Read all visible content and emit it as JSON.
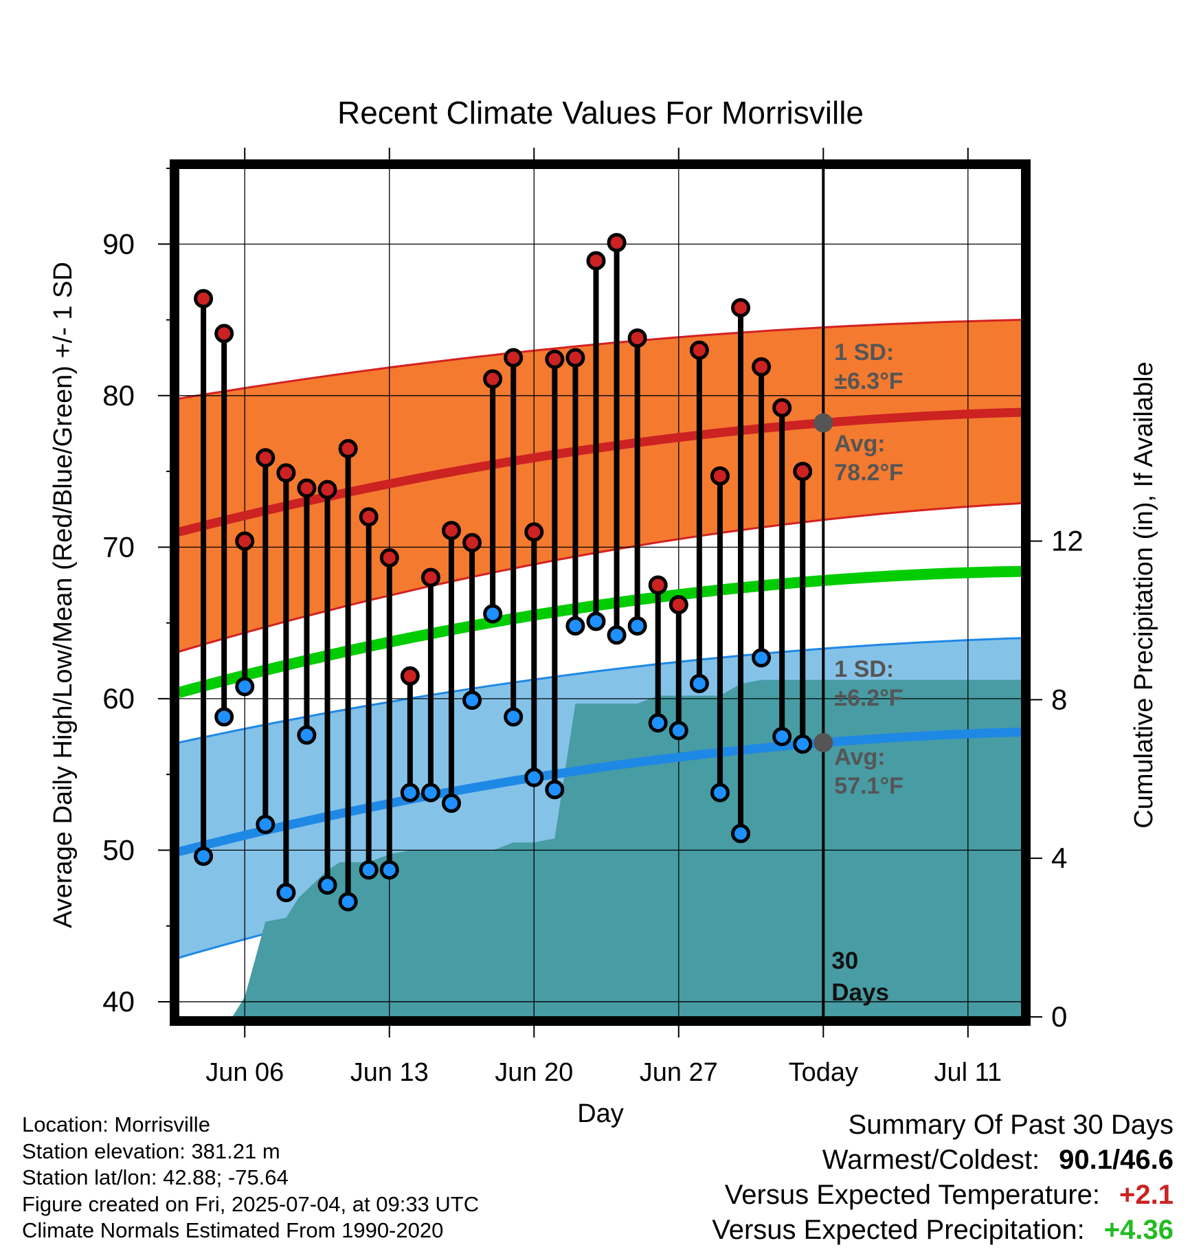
{
  "chart_data": {
    "type": "line",
    "title": "Recent Climate Values For Morrisville",
    "xlabel": "Day",
    "ylabel": "Average Daily High/Low/Mean (Red/Blue/Green) +/- 1 SD",
    "y2label": "Cumulative Precipitation (in), If Available",
    "ylim": [
      39,
      95
    ],
    "y2lim": [
      0,
      21.4
    ],
    "x_ticks": [
      "Jun 06",
      "Jun 13",
      "Jun 20",
      "Jun 27",
      "Today",
      "Jul 11"
    ],
    "x_tick_days": [
      6,
      13,
      20,
      27,
      34,
      41
    ],
    "xlim": [
      2.8,
      43.6
    ],
    "y_ticks": [
      40,
      50,
      60,
      70,
      80,
      90
    ],
    "y2_ticks": [
      0,
      4,
      8,
      12
    ],
    "today_day": 34,
    "today_label": [
      "30",
      "Days"
    ],
    "normals": {
      "days": [
        2.8,
        34,
        43.6
      ],
      "high_mean": [
        71.0,
        78.2,
        78.9
      ],
      "high_sd_upper": [
        79.8,
        84.5,
        85.0
      ],
      "high_sd_lower": [
        63.1,
        71.8,
        72.9
      ],
      "mean": [
        60.4,
        67.8,
        68.4
      ],
      "low_mean": [
        49.9,
        57.1,
        57.8
      ],
      "low_sd_upper": [
        57.1,
        63.3,
        64.0
      ],
      "low_sd_lower": [
        42.9,
        50.9,
        51.6
      ]
    },
    "annotations": {
      "high_sd": [
        "1 SD:",
        "±6.3°F"
      ],
      "high_avg": [
        "Avg:",
        "78.2°F"
      ],
      "low_sd": [
        "1 SD:",
        "±6.2°F"
      ],
      "low_avg": [
        "Avg:",
        "57.1°F"
      ]
    },
    "series": [
      {
        "name": "High",
        "days": [
          4,
          5,
          6,
          7,
          8,
          9,
          10,
          11,
          12,
          13,
          14,
          15,
          16,
          17,
          18,
          19,
          20,
          21,
          22,
          23,
          24,
          25,
          26,
          27,
          28,
          29,
          30,
          31,
          32,
          33
        ],
        "values": [
          86.4,
          84.1,
          70.4,
          75.9,
          74.9,
          73.9,
          73.8,
          76.5,
          72.0,
          69.3,
          61.5,
          68.0,
          71.1,
          70.3,
          81.1,
          82.5,
          71.0,
          82.4,
          82.5,
          88.9,
          90.1,
          83.8,
          67.5,
          66.2,
          83.0,
          74.7,
          85.8,
          81.9,
          79.2,
          75.0
        ]
      },
      {
        "name": "Low",
        "days": [
          4,
          5,
          6,
          7,
          8,
          9,
          10,
          11,
          12,
          13,
          14,
          15,
          16,
          17,
          18,
          19,
          20,
          21,
          22,
          23,
          24,
          25,
          26,
          27,
          28,
          29,
          30,
          31,
          32,
          33
        ],
        "values": [
          49.6,
          58.8,
          60.8,
          51.7,
          47.2,
          57.6,
          47.7,
          46.6,
          48.7,
          48.7,
          53.8,
          53.8,
          53.1,
          59.9,
          65.6,
          58.8,
          54.8,
          54.0,
          64.8,
          65.1,
          64.2,
          64.8,
          58.4,
          57.9,
          61.0,
          53.8,
          51.1,
          62.7,
          57.5,
          57.0
        ]
      },
      {
        "name": "Cumulative Precipitation",
        "days": [
          2.8,
          5,
          5.4,
          6,
          7,
          8,
          8.6,
          9,
          9.8,
          10,
          10.6,
          11,
          12,
          13,
          14,
          15,
          16,
          17,
          18,
          19,
          20,
          21,
          22,
          23,
          24,
          25,
          26,
          27,
          28,
          29,
          30,
          31,
          33,
          34,
          43.6
        ],
        "values": [
          0,
          0,
          0,
          0.5,
          2.4,
          2.5,
          3.0,
          3.2,
          3.6,
          3.7,
          3.9,
          3.9,
          3.9,
          4.1,
          4.2,
          4.2,
          4.2,
          4.2,
          4.2,
          4.4,
          4.4,
          4.5,
          7.9,
          7.9,
          7.9,
          7.9,
          8.1,
          8.1,
          8.1,
          8.1,
          8.4,
          8.5,
          8.5,
          8.5,
          8.5
        ]
      }
    ]
  },
  "meta": {
    "lines": [
      "Location: Morrisville",
      "Station elevation: 381.21 m",
      "Station lat/lon: 42.88; -75.64",
      "Figure created on Fri, 2025-07-04, at 09:33 UTC",
      "Climate Normals Estimated From 1990-2020"
    ]
  },
  "summary": {
    "title": "Summary Of Past 30 Days",
    "warmest_coldest_label": "Warmest/Coldest:",
    "warmest_coldest_value": "90.1/46.6",
    "temp_label": "Versus Expected Temperature:",
    "temp_value": "+2.1",
    "precip_label": "Versus Expected Precipitation:",
    "precip_value": "+4.36",
    "colors": {
      "temp": "#cc2222",
      "precip": "#22bb22"
    }
  },
  "colors": {
    "high_band": "#f47a30",
    "high_edge": "#d42020",
    "high_mean": "#cc2222",
    "mean": "#00cc00",
    "low_band": "#85c2e8",
    "low_edge": "#1e88e5",
    "low_mean": "#1e88e5",
    "precip": "#489ca4",
    "high_dot": "#cc2222",
    "low_dot": "#1e90ff",
    "today_dot": "#555555",
    "annot_text": "#555555"
  }
}
